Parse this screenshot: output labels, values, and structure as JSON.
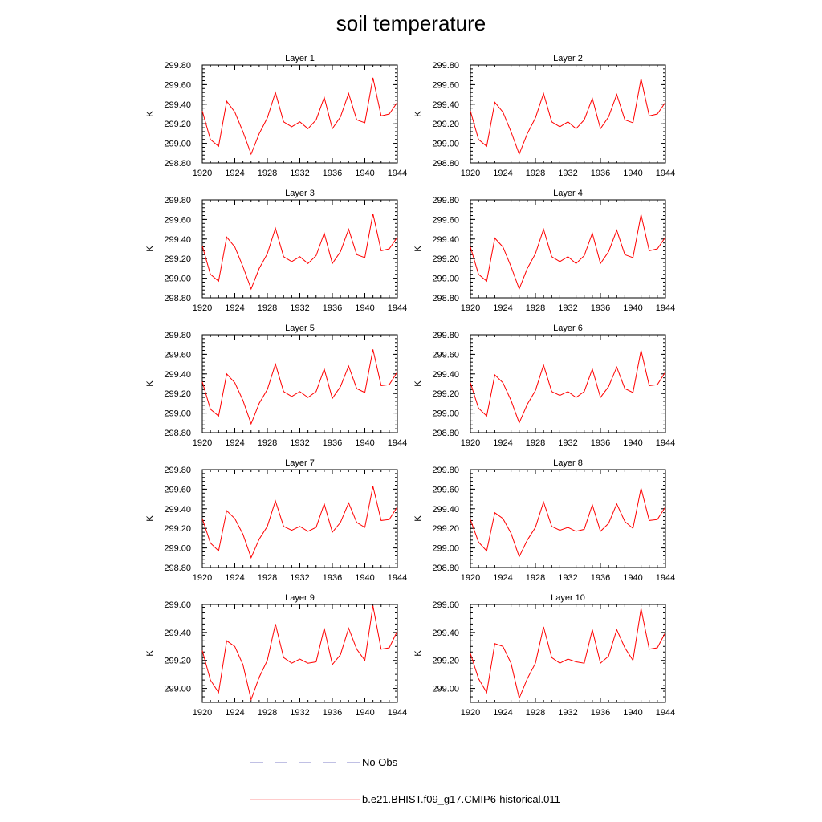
{
  "title": "soil temperature",
  "colors": {
    "model": "#ff0000",
    "obs": "#8080c8",
    "axis": "#000000"
  },
  "legend": {
    "obs_label": "No Obs",
    "model_label": "b.e21.BHIST.f09_g17.CMIP6-historical.011"
  },
  "chart_data": [
    {
      "type": "line",
      "title": "Layer 1",
      "ylabel": "K",
      "xlim": [
        1920,
        1944
      ],
      "ylim": [
        298.8,
        299.8
      ],
      "xticks": [
        "1920",
        "1924",
        "1928",
        "1932",
        "1936",
        "1940",
        "1944"
      ],
      "yticks": [
        "298.80",
        "299.00",
        "299.20",
        "299.40",
        "299.60",
        "299.80"
      ],
      "x": [
        1920,
        1921,
        1922,
        1923,
        1924,
        1925,
        1926,
        1927,
        1928,
        1929,
        1930,
        1931,
        1932,
        1933,
        1934,
        1935,
        1936,
        1937,
        1938,
        1939,
        1940,
        1941,
        1942,
        1943,
        1944
      ],
      "series": [
        {
          "values": [
            299.33,
            299.04,
            298.97,
            299.43,
            299.32,
            299.12,
            298.89,
            299.1,
            299.26,
            299.52,
            299.22,
            299.17,
            299.22,
            299.15,
            299.24,
            299.47,
            299.15,
            299.27,
            299.51,
            299.24,
            299.21,
            299.67,
            299.28,
            299.3,
            299.42
          ]
        }
      ]
    },
    {
      "type": "line",
      "title": "Layer 2",
      "ylabel": "K",
      "xlim": [
        1920,
        1944
      ],
      "ylim": [
        298.8,
        299.8
      ],
      "xticks": [
        "1920",
        "1924",
        "1928",
        "1932",
        "1936",
        "1940",
        "1944"
      ],
      "yticks": [
        "298.80",
        "299.00",
        "299.20",
        "299.40",
        "299.60",
        "299.80"
      ],
      "x": [
        1920,
        1921,
        1922,
        1923,
        1924,
        1925,
        1926,
        1927,
        1928,
        1929,
        1930,
        1931,
        1932,
        1933,
        1934,
        1935,
        1936,
        1937,
        1938,
        1939,
        1940,
        1941,
        1942,
        1943,
        1944
      ],
      "series": [
        {
          "values": [
            299.33,
            299.04,
            298.97,
            299.42,
            299.32,
            299.12,
            298.89,
            299.1,
            299.26,
            299.51,
            299.22,
            299.17,
            299.22,
            299.15,
            299.24,
            299.46,
            299.15,
            299.27,
            299.5,
            299.24,
            299.21,
            299.66,
            299.28,
            299.3,
            299.42
          ]
        }
      ]
    },
    {
      "type": "line",
      "title": "Layer 3",
      "ylabel": "K",
      "xlim": [
        1920,
        1944
      ],
      "ylim": [
        298.8,
        299.8
      ],
      "xticks": [
        "1920",
        "1924",
        "1928",
        "1932",
        "1936",
        "1940",
        "1944"
      ],
      "yticks": [
        "298.80",
        "299.00",
        "299.20",
        "299.40",
        "299.60",
        "299.80"
      ],
      "x": [
        1920,
        1921,
        1922,
        1923,
        1924,
        1925,
        1926,
        1927,
        1928,
        1929,
        1930,
        1931,
        1932,
        1933,
        1934,
        1935,
        1936,
        1937,
        1938,
        1939,
        1940,
        1941,
        1942,
        1943,
        1944
      ],
      "series": [
        {
          "values": [
            299.33,
            299.04,
            298.97,
            299.42,
            299.32,
            299.12,
            298.89,
            299.1,
            299.25,
            299.51,
            299.22,
            299.17,
            299.22,
            299.15,
            299.23,
            299.46,
            299.15,
            299.27,
            299.5,
            299.24,
            299.21,
            299.66,
            299.28,
            299.3,
            299.42
          ]
        }
      ]
    },
    {
      "type": "line",
      "title": "Layer 4",
      "ylabel": "K",
      "xlim": [
        1920,
        1944
      ],
      "ylim": [
        298.8,
        299.8
      ],
      "xticks": [
        "1920",
        "1924",
        "1928",
        "1932",
        "1936",
        "1940",
        "1944"
      ],
      "yticks": [
        "298.80",
        "299.00",
        "299.20",
        "299.40",
        "299.60",
        "299.80"
      ],
      "x": [
        1920,
        1921,
        1922,
        1923,
        1924,
        1925,
        1926,
        1927,
        1928,
        1929,
        1930,
        1931,
        1932,
        1933,
        1934,
        1935,
        1936,
        1937,
        1938,
        1939,
        1940,
        1941,
        1942,
        1943,
        1944
      ],
      "series": [
        {
          "values": [
            299.32,
            299.04,
            298.97,
            299.41,
            299.32,
            299.12,
            298.89,
            299.1,
            299.25,
            299.5,
            299.22,
            299.17,
            299.22,
            299.15,
            299.23,
            299.46,
            299.15,
            299.27,
            299.49,
            299.24,
            299.21,
            299.65,
            299.28,
            299.3,
            299.42
          ]
        }
      ]
    },
    {
      "type": "line",
      "title": "Layer 5",
      "ylabel": "K",
      "xlim": [
        1920,
        1944
      ],
      "ylim": [
        298.8,
        299.8
      ],
      "xticks": [
        "1920",
        "1924",
        "1928",
        "1932",
        "1936",
        "1940",
        "1944"
      ],
      "yticks": [
        "298.80",
        "299.00",
        "299.20",
        "299.40",
        "299.60",
        "299.80"
      ],
      "x": [
        1920,
        1921,
        1922,
        1923,
        1924,
        1925,
        1926,
        1927,
        1928,
        1929,
        1930,
        1931,
        1932,
        1933,
        1934,
        1935,
        1936,
        1937,
        1938,
        1939,
        1940,
        1941,
        1942,
        1943,
        1944
      ],
      "series": [
        {
          "values": [
            299.32,
            299.04,
            298.97,
            299.4,
            299.31,
            299.13,
            298.89,
            299.1,
            299.24,
            299.5,
            299.22,
            299.17,
            299.22,
            299.16,
            299.22,
            299.45,
            299.15,
            299.27,
            299.48,
            299.25,
            299.21,
            299.65,
            299.28,
            299.29,
            299.42
          ]
        }
      ]
    },
    {
      "type": "line",
      "title": "Layer 6",
      "ylabel": "K",
      "xlim": [
        1920,
        1944
      ],
      "ylim": [
        298.8,
        299.8
      ],
      "xticks": [
        "1920",
        "1924",
        "1928",
        "1932",
        "1936",
        "1940",
        "1944"
      ],
      "yticks": [
        "298.80",
        "299.00",
        "299.20",
        "299.40",
        "299.60",
        "299.80"
      ],
      "x": [
        1920,
        1921,
        1922,
        1923,
        1924,
        1925,
        1926,
        1927,
        1928,
        1929,
        1930,
        1931,
        1932,
        1933,
        1934,
        1935,
        1936,
        1937,
        1938,
        1939,
        1940,
        1941,
        1942,
        1943,
        1944
      ],
      "series": [
        {
          "values": [
            299.31,
            299.05,
            298.97,
            299.39,
            299.31,
            299.13,
            298.9,
            299.09,
            299.23,
            299.49,
            299.22,
            299.18,
            299.22,
            299.16,
            299.22,
            299.45,
            299.16,
            299.27,
            299.47,
            299.25,
            299.21,
            299.64,
            299.28,
            299.29,
            299.42
          ]
        }
      ]
    },
    {
      "type": "line",
      "title": "Layer 7",
      "ylabel": "K",
      "xlim": [
        1920,
        1944
      ],
      "ylim": [
        298.8,
        299.8
      ],
      "xticks": [
        "1920",
        "1924",
        "1928",
        "1932",
        "1936",
        "1940",
        "1944"
      ],
      "yticks": [
        "298.80",
        "299.00",
        "299.20",
        "299.40",
        "299.60",
        "299.80"
      ],
      "x": [
        1920,
        1921,
        1922,
        1923,
        1924,
        1925,
        1926,
        1927,
        1928,
        1929,
        1930,
        1931,
        1932,
        1933,
        1934,
        1935,
        1936,
        1937,
        1938,
        1939,
        1940,
        1941,
        1942,
        1943,
        1944
      ],
      "series": [
        {
          "values": [
            299.3,
            299.05,
            298.97,
            299.38,
            299.3,
            299.14,
            298.9,
            299.09,
            299.22,
            299.48,
            299.22,
            299.18,
            299.22,
            299.17,
            299.21,
            299.45,
            299.16,
            299.26,
            299.46,
            299.26,
            299.21,
            299.63,
            299.28,
            299.29,
            299.42
          ]
        }
      ]
    },
    {
      "type": "line",
      "title": "Layer 8",
      "ylabel": "K",
      "xlim": [
        1920,
        1944
      ],
      "ylim": [
        298.8,
        299.8
      ],
      "xticks": [
        "1920",
        "1924",
        "1928",
        "1932",
        "1936",
        "1940",
        "1944"
      ],
      "yticks": [
        "298.80",
        "299.00",
        "299.20",
        "299.40",
        "299.60",
        "299.80"
      ],
      "x": [
        1920,
        1921,
        1922,
        1923,
        1924,
        1925,
        1926,
        1927,
        1928,
        1929,
        1930,
        1931,
        1932,
        1933,
        1934,
        1935,
        1936,
        1937,
        1938,
        1939,
        1940,
        1941,
        1942,
        1943,
        1944
      ],
      "series": [
        {
          "values": [
            299.29,
            299.06,
            298.97,
            299.36,
            299.3,
            299.15,
            298.91,
            299.08,
            299.21,
            299.47,
            299.22,
            299.18,
            299.21,
            299.17,
            299.19,
            299.44,
            299.17,
            299.25,
            299.45,
            299.27,
            299.2,
            299.61,
            299.28,
            299.29,
            299.42
          ]
        }
      ]
    },
    {
      "type": "line",
      "title": "Layer 9",
      "ylabel": "K",
      "xlim": [
        1920,
        1944
      ],
      "ylim": [
        298.9,
        299.6
      ],
      "xticks": [
        "1920",
        "1924",
        "1928",
        "1932",
        "1936",
        "1940",
        "1944"
      ],
      "yticks": [
        "299.00",
        "299.20",
        "299.40",
        "299.60"
      ],
      "x": [
        1920,
        1921,
        1922,
        1923,
        1924,
        1925,
        1926,
        1927,
        1928,
        1929,
        1930,
        1931,
        1932,
        1933,
        1934,
        1935,
        1936,
        1937,
        1938,
        1939,
        1940,
        1941,
        1942,
        1943,
        1944
      ],
      "series": [
        {
          "values": [
            299.27,
            299.06,
            298.97,
            299.34,
            299.3,
            299.17,
            298.92,
            299.08,
            299.2,
            299.46,
            299.22,
            299.18,
            299.21,
            299.18,
            299.19,
            299.43,
            299.17,
            299.24,
            299.43,
            299.28,
            299.2,
            299.59,
            299.28,
            299.29,
            299.41
          ]
        }
      ]
    },
    {
      "type": "line",
      "title": "Layer 10",
      "ylabel": "K",
      "xlim": [
        1920,
        1944
      ],
      "ylim": [
        298.9,
        299.6
      ],
      "xticks": [
        "1920",
        "1924",
        "1928",
        "1932",
        "1936",
        "1940",
        "1944"
      ],
      "yticks": [
        "299.00",
        "299.20",
        "299.40",
        "299.60"
      ],
      "x": [
        1920,
        1921,
        1922,
        1923,
        1924,
        1925,
        1926,
        1927,
        1928,
        1929,
        1930,
        1931,
        1932,
        1933,
        1934,
        1935,
        1936,
        1937,
        1938,
        1939,
        1940,
        1941,
        1942,
        1943,
        1944
      ],
      "series": [
        {
          "values": [
            299.25,
            299.07,
            298.97,
            299.32,
            299.3,
            299.18,
            298.93,
            299.07,
            299.18,
            299.44,
            299.22,
            299.18,
            299.21,
            299.19,
            299.18,
            299.42,
            299.18,
            299.23,
            299.42,
            299.29,
            299.2,
            299.57,
            299.28,
            299.29,
            299.4
          ]
        }
      ]
    }
  ]
}
